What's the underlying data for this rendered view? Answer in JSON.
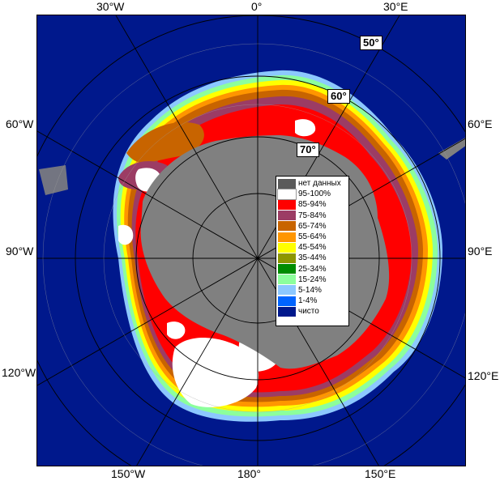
{
  "map": {
    "longitude_labels": {
      "lon_30w": "30°W",
      "lon_0": "0°",
      "lon_30e": "30°E",
      "lon_60w": "60°W",
      "lon_60e": "60°E",
      "lon_90w": "90°W",
      "lon_90e": "90°E",
      "lon_120w": "120°W",
      "lon_120e": "120°E",
      "lon_150w": "150°W",
      "lon_180": "180°",
      "lon_150e": "150°E"
    },
    "latitude_labels": {
      "lat_50": "50°",
      "lat_60": "60°",
      "lat_70": "70°"
    },
    "colors": {
      "ocean": "#00188c",
      "no_data": "#808080",
      "land_frame": "#ffffff"
    }
  },
  "legend": {
    "items": [
      {
        "label": "нет данных",
        "color": "#5a5a5a"
      },
      {
        "label": "95-100%",
        "color": "#ffffff"
      },
      {
        "label": "85-94%",
        "color": "#ff0000"
      },
      {
        "label": "75-84%",
        "color": "#9c3c64"
      },
      {
        "label": "65-74%",
        "color": "#c86400"
      },
      {
        "label": "55-64%",
        "color": "#ff9600"
      },
      {
        "label": "45-54%",
        "color": "#ffff00"
      },
      {
        "label": "35-44%",
        "color": "#8c9600"
      },
      {
        "label": "25-34%",
        "color": "#008c00"
      },
      {
        "label": "15-24%",
        "color": "#8cff9c"
      },
      {
        "label": "5-14%",
        "color": "#8cc8ff"
      },
      {
        "label": "1-4%",
        "color": "#0064ff"
      },
      {
        "label": "чисто",
        "color": "#00188c"
      }
    ]
  }
}
